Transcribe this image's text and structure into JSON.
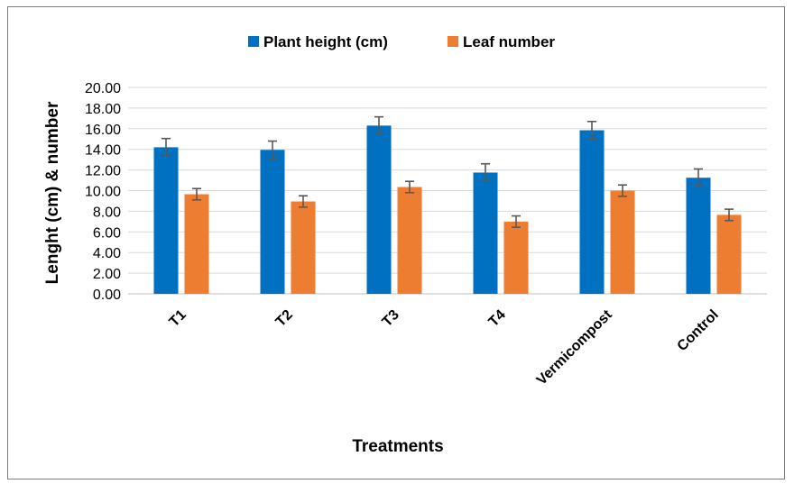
{
  "chart_data": {
    "type": "bar",
    "title": "",
    "xlabel": "Treatments",
    "ylabel": "Lenght (cm) & number",
    "categories": [
      "T1",
      "T2",
      "T3",
      "T4",
      "Vermicompost",
      "Control"
    ],
    "series": [
      {
        "name": "Plant height (cm)",
        "color": "#0070c0",
        "values": [
          14.2,
          13.95,
          16.3,
          11.75,
          15.85,
          11.25
        ],
        "errors": [
          0.85,
          0.85,
          0.85,
          0.85,
          0.85,
          0.85
        ]
      },
      {
        "name": "Leaf number",
        "color": "#ed7d31",
        "values": [
          9.65,
          8.95,
          10.35,
          7.0,
          10.0,
          7.65
        ],
        "errors": [
          0.55,
          0.55,
          0.55,
          0.55,
          0.55,
          0.55
        ]
      }
    ],
    "ylim": [
      0,
      20
    ],
    "yticks": [
      "0.00",
      "2.00",
      "4.00",
      "6.00",
      "8.00",
      "10.00",
      "12.00",
      "14.00",
      "16.00",
      "18.00",
      "20.00"
    ],
    "grid": true,
    "legend_position": "top-center",
    "error_bar_color": "#595959"
  }
}
